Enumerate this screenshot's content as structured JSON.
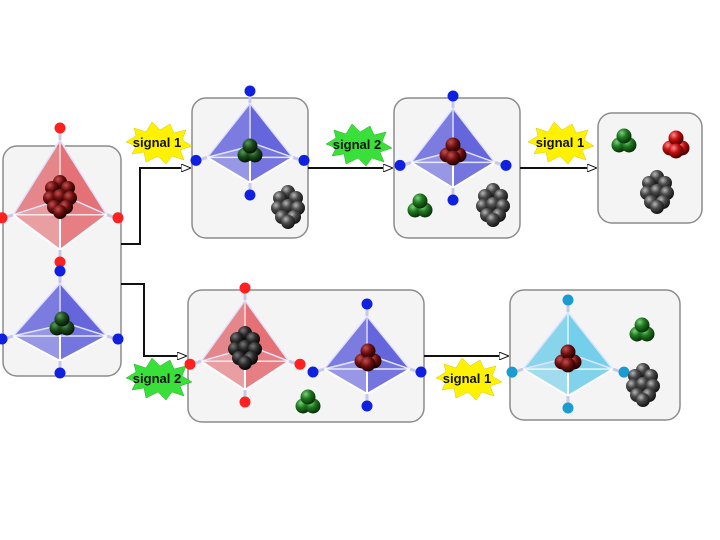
{
  "signals": {
    "s1_top_a": "signal 1",
    "s2_top": "signal 2",
    "s1_top_b": "signal 1",
    "s2_bottom": "signal 2",
    "s1_bottom": "signal 1"
  },
  "colors": {
    "background": "#ffffff",
    "box_border": "#8c8c8c",
    "box_fill": "#f4f4f4",
    "arrow": "#111111",
    "burst_yellow": "#fff200",
    "burst_green": "#39e039",
    "red_cage": "#e0585e",
    "blue_cage": "#4b4bd8",
    "cyan_cage": "#5bc8e8",
    "red_node": "#ff2020",
    "blue_node": "#1020e0",
    "cyan_node": "#1a9cd0",
    "green_guest": "#1f7a1f",
    "red_guest": "#c41010",
    "gray_guest": "#4a4a4a"
  }
}
